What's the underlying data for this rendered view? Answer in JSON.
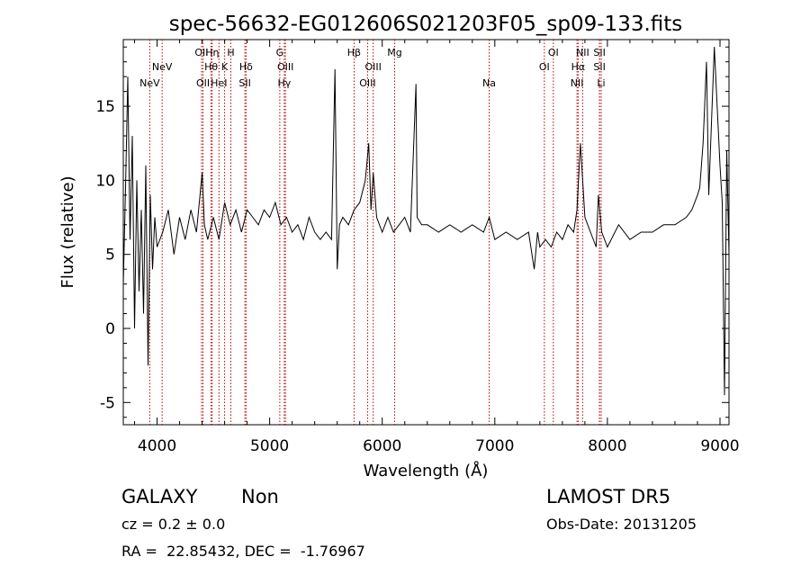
{
  "chart_data": {
    "type": "line",
    "title": "spec-56632-EG012606S021203F05_sp09-133.fits",
    "xlabel": "Wavelength (Å)",
    "ylabel": "Flux (relative)",
    "xlim": [
      3700,
      9080
    ],
    "ylim": [
      -6.5,
      19.5
    ],
    "xticks": [
      4000,
      5000,
      6000,
      7000,
      8000,
      9000
    ],
    "yticks": [
      -5,
      0,
      5,
      10,
      15
    ],
    "grid": false,
    "series_color": "#000000",
    "line_color": "#c00000",
    "spectrum": {
      "x": [
        3700,
        3720,
        3740,
        3760,
        3780,
        3800,
        3820,
        3840,
        3860,
        3880,
        3900,
        3920,
        3940,
        3960,
        3980,
        4000,
        4050,
        4100,
        4150,
        4200,
        4250,
        4300,
        4350,
        4400,
        4420,
        4450,
        4500,
        4550,
        4600,
        4650,
        4700,
        4750,
        4800,
        4850,
        4900,
        4950,
        5000,
        5050,
        5100,
        5150,
        5200,
        5250,
        5300,
        5350,
        5400,
        5450,
        5500,
        5550,
        5580,
        5600,
        5620,
        5650,
        5700,
        5750,
        5800,
        5850,
        5880,
        5900,
        5920,
        5950,
        6000,
        6050,
        6100,
        6150,
        6200,
        6250,
        6300,
        6310,
        6350,
        6400,
        6500,
        6600,
        6700,
        6800,
        6900,
        6950,
        7000,
        7100,
        7200,
        7300,
        7350,
        7380,
        7400,
        7450,
        7500,
        7550,
        7600,
        7650,
        7700,
        7730,
        7760,
        7800,
        7850,
        7900,
        7920,
        7950,
        8000,
        8100,
        8200,
        8300,
        8400,
        8500,
        8600,
        8700,
        8750,
        8800,
        8820,
        8850,
        8880,
        8900,
        8950,
        9000,
        9020,
        9040,
        9060,
        9080
      ],
      "y": [
        3.0,
        9.5,
        17.0,
        6.0,
        13.0,
        0.0,
        10.0,
        2.5,
        8.0,
        1.0,
        11.0,
        -2.5,
        9.0,
        4.0,
        7.5,
        5.5,
        6.5,
        8.0,
        5.0,
        7.5,
        6.0,
        8.0,
        6.5,
        10.5,
        7.0,
        6.0,
        7.5,
        6.0,
        8.5,
        7.0,
        8.0,
        6.5,
        8.0,
        7.5,
        7.0,
        8.0,
        7.5,
        8.5,
        7.0,
        7.5,
        6.5,
        7.0,
        6.0,
        7.5,
        6.5,
        6.0,
        6.5,
        6.0,
        17.5,
        4.0,
        7.0,
        7.5,
        7.0,
        8.0,
        8.5,
        10.0,
        12.5,
        8.0,
        10.5,
        7.5,
        6.5,
        7.5,
        6.5,
        7.0,
        7.5,
        6.5,
        16.5,
        7.5,
        7.0,
        7.0,
        6.5,
        7.0,
        6.5,
        7.0,
        6.5,
        7.5,
        6.0,
        6.5,
        6.0,
        6.5,
        4.0,
        6.5,
        5.5,
        6.0,
        5.5,
        6.5,
        6.0,
        7.0,
        6.5,
        8.0,
        12.5,
        7.5,
        6.5,
        5.5,
        9.0,
        6.5,
        5.5,
        7.0,
        6.0,
        6.5,
        6.5,
        7.0,
        7.0,
        7.5,
        8.0,
        9.0,
        9.5,
        12.5,
        18.0,
        9.0,
        19.0,
        11.0,
        8.5,
        -4.5,
        12.0,
        5.0
      ]
    },
    "lines": [
      {
        "wl": 3727,
        "label": "OII",
        "row": 3
      },
      {
        "wl": 3934,
        "label": "K",
        "row": 2
      },
      {
        "wl": 3969,
        "label": "H",
        "row": 1
      },
      {
        "wl": 3967,
        "label": "NeV",
        "row": 3
      },
      {
        "wl": 4102,
        "label": "Hδ",
        "row": 2
      },
      {
        "wl": 4340,
        "label": "Hγ",
        "row": 3
      },
      {
        "wl": 4861,
        "label": "Hβ",
        "row": 1
      },
      {
        "wl": 4959,
        "label": "OIII",
        "row": 2
      },
      {
        "wl": 5007,
        "label": "OIII",
        "row": 3
      },
      {
        "wl": 5175,
        "label": "Mg",
        "row": 1
      },
      {
        "wl": 5893,
        "label": "Na",
        "row": 3
      },
      {
        "wl": 6300,
        "label": "OI",
        "row": 1
      },
      {
        "wl": 6363,
        "label": "OI",
        "row": 2
      },
      {
        "wl": 6548,
        "label": "NII",
        "row": 3
      },
      {
        "wl": 6563,
        "label": "Hα",
        "row": 2
      },
      {
        "wl": 6583,
        "label": "NII",
        "row": 1
      },
      {
        "wl": 6716,
        "label": "SII",
        "row": 1
      },
      {
        "wl": 6731,
        "label": "SII",
        "row": 2
      }
    ],
    "labeled_lines": [
      {
        "wl": 3935,
        "label": "NeV",
        "row": 3
      },
      {
        "wl": 4045,
        "label": "NeV",
        "row": 2
      },
      {
        "wl": 4395,
        "label": "OII",
        "row": 1
      },
      {
        "wl": 4408,
        "label": "OII",
        "row": 3
      },
      {
        "wl": 4480,
        "label": "Hθ",
        "row": 2
      },
      {
        "wl": 4490,
        "label": "Hη",
        "row": 1
      },
      {
        "wl": 4550,
        "label": "HeI",
        "row": 3
      },
      {
        "wl": 4600,
        "label": "K",
        "row": 2
      },
      {
        "wl": 4655,
        "label": "H",
        "row": 1
      },
      {
        "wl": 4790,
        "label": "Hδ",
        "row": 2
      },
      {
        "wl": 4780,
        "label": "SII",
        "row": 3
      },
      {
        "wl": 5090,
        "label": "G",
        "row": 1
      },
      {
        "wl": 5140,
        "label": "OIII",
        "row": 2
      },
      {
        "wl": 5130,
        "label": "Hγ",
        "row": 3
      },
      {
        "wl": 5750,
        "label": "Hβ",
        "row": 1
      },
      {
        "wl": 5870,
        "label": "OIII",
        "row": 3
      },
      {
        "wl": 5920,
        "label": "OIII",
        "row": 2
      },
      {
        "wl": 6110,
        "label": "Mg",
        "row": 1
      },
      {
        "wl": 6950,
        "label": "Na",
        "row": 3
      },
      {
        "wl": 7440,
        "label": "OI",
        "row": 2
      },
      {
        "wl": 7520,
        "label": "OI",
        "row": 1
      },
      {
        "wl": 7730,
        "label": "NII",
        "row": 3
      },
      {
        "wl": 7740,
        "label": "Hα",
        "row": 2
      },
      {
        "wl": 7780,
        "label": "NII",
        "row": 1
      },
      {
        "wl": 7930,
        "label": "SII",
        "row": 1
      },
      {
        "wl": 7930,
        "label": "SII",
        "row": 2
      },
      {
        "wl": 7945,
        "label": "Li",
        "row": 3
      }
    ]
  },
  "info": {
    "class": "GALAXY",
    "subclass": "Non",
    "survey": "LAMOST DR5",
    "cz": "cz = 0.2 ± 0.0",
    "obs_date": "Obs-Date: 20131205",
    "radec": "RA =  22.85432, DEC =  -1.76967"
  }
}
